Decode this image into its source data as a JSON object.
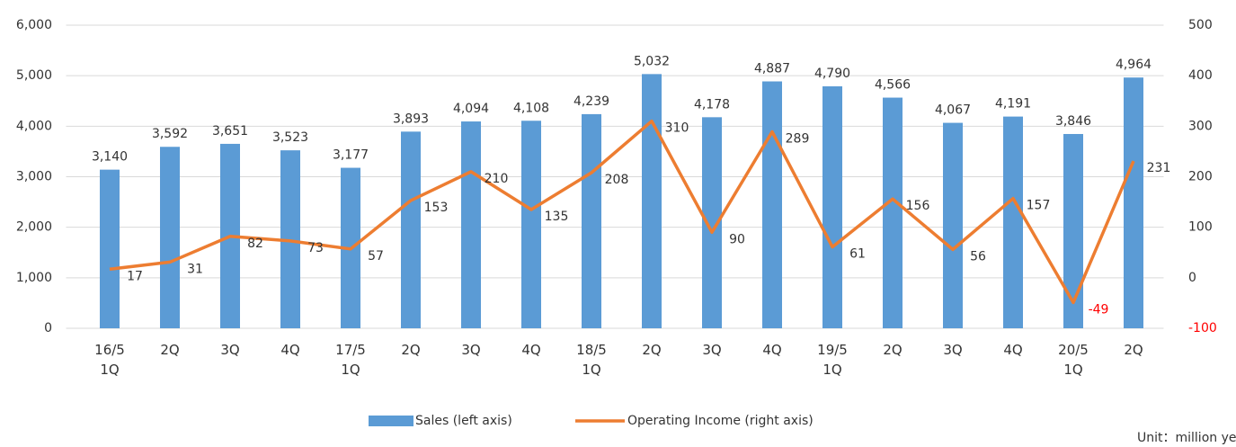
{
  "chart_data": {
    "type": "bar_line",
    "categories": [
      "16/5\n1Q",
      "2Q",
      "3Q",
      "4Q",
      "17/5\n1Q",
      "2Q",
      "3Q",
      "4Q",
      "18/5\n1Q",
      "2Q",
      "3Q",
      "4Q",
      "19/5\n1Q",
      "2Q",
      "3Q",
      "4Q",
      "20/5\n1Q",
      "2Q"
    ],
    "series": [
      {
        "name": "Sales (left axis)",
        "type": "bar",
        "color": "#5b9bd5",
        "values": [
          3140,
          3592,
          3651,
          3523,
          3177,
          3893,
          4094,
          4108,
          4239,
          5032,
          4178,
          4887,
          4790,
          4566,
          4067,
          4191,
          3846,
          4964
        ],
        "value_labels": [
          "3,140",
          "3,592",
          "3,651",
          "3,523",
          "3,177",
          "3,893",
          "4,094",
          "4,108",
          "4,239",
          "5,032",
          "4,178",
          "4,887",
          "4,790",
          "4,566",
          "4,067",
          "4,191",
          "3,846",
          "4,964"
        ]
      },
      {
        "name": "Operating Income (right axis)",
        "type": "line",
        "axis": "y2",
        "color": "#ed7d31",
        "values": [
          17,
          31,
          82,
          73,
          57,
          153,
          210,
          135,
          208,
          310,
          90,
          289,
          61,
          156,
          56,
          157,
          -49,
          231
        ]
      }
    ],
    "ylim": [
      0,
      6000
    ],
    "yticks": [
      0,
      {
        "value": 1000,
        "label": "1,000"
      },
      {
        "value": 2000,
        "label": "2,000"
      },
      {
        "value": 3000,
        "label": "3,000"
      },
      {
        "value": 4000,
        "label": "4,000"
      },
      {
        "value": 5000,
        "label": "5,000"
      },
      {
        "value": 6000,
        "label": "6,000"
      }
    ],
    "y2lim": [
      -100,
      500
    ],
    "y2ticks": [
      -100,
      0,
      100,
      200,
      300,
      400,
      500
    ],
    "negative_color": "#ff0000",
    "grid": true,
    "legend": "bottom",
    "note": "Unit：million yen"
  }
}
